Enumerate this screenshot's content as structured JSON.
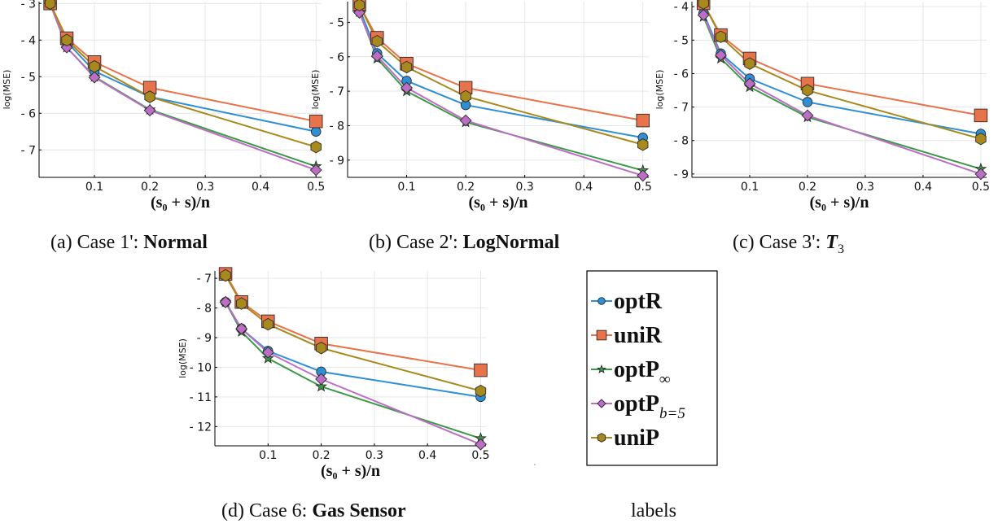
{
  "colors": {
    "optR": "#2e8fd4",
    "uniR": "#e8724a",
    "optP_inf": "#3d9a48",
    "optP_b5": "#bc6ec5",
    "uniP": "#a8891e"
  },
  "chart_data": [
    {
      "type": "line",
      "ylabel": "log(MSE)",
      "xlabel": "(s₀ + s)/n",
      "x": [
        0.02,
        0.05,
        0.1,
        0.2,
        0.5
      ],
      "xlim": [
        0.0,
        0.51
      ],
      "ylim": [
        -7.75,
        -2.95
      ],
      "xticks": [
        0.1,
        0.2,
        0.3,
        0.4,
        0.5
      ],
      "yticks": [
        -7,
        -6,
        -5,
        -4,
        -3
      ],
      "grid": true,
      "series": [
        {
          "name": "optR",
          "values": [
            -3.0,
            -4.05,
            -4.85,
            -5.55,
            -6.5
          ]
        },
        {
          "name": "uniR",
          "values": [
            -3.0,
            -3.95,
            -4.6,
            -5.3,
            -6.22
          ]
        },
        {
          "name": "optP∞",
          "values": [
            -3.0,
            -4.2,
            -5.0,
            -5.9,
            -7.45
          ]
        },
        {
          "name": "optPb=5",
          "values": [
            -3.0,
            -4.2,
            -5.02,
            -5.92,
            -7.55
          ]
        },
        {
          "name": "uniP",
          "values": [
            -3.0,
            -4.0,
            -4.72,
            -5.55,
            -6.92
          ]
        }
      ],
      "caption_prefix": "(a) Case 1':",
      "caption_bold": "Normal"
    },
    {
      "type": "line",
      "ylabel": "log(MSE)",
      "xlabel": "(s₀ + s)/n",
      "x": [
        0.02,
        0.05,
        0.1,
        0.2,
        0.5
      ],
      "xlim": [
        0.0,
        0.51
      ],
      "ylim": [
        -9.5,
        -4.4
      ],
      "xticks": [
        0.1,
        0.2,
        0.3,
        0.4,
        0.5
      ],
      "yticks": [
        -9,
        -8,
        -7,
        -6,
        -5
      ],
      "grid": true,
      "series": [
        {
          "name": "optR",
          "values": [
            -4.6,
            -5.9,
            -6.7,
            -7.4,
            -8.35
          ]
        },
        {
          "name": "uniR",
          "values": [
            -4.5,
            -5.45,
            -6.2,
            -6.9,
            -7.85
          ]
        },
        {
          "name": "optP∞",
          "values": [
            -4.7,
            -6.05,
            -7.0,
            -7.9,
            -9.3
          ]
        },
        {
          "name": "optPb=5",
          "values": [
            -4.72,
            -5.98,
            -6.9,
            -7.85,
            -9.45
          ]
        },
        {
          "name": "uniP",
          "values": [
            -4.5,
            -5.55,
            -6.3,
            -7.15,
            -8.55
          ]
        }
      ],
      "caption_prefix": "(b) Case 2':",
      "caption_bold": "LogNormal"
    },
    {
      "type": "line",
      "ylabel": "log(MSE)",
      "xlabel": "(s₀ + s)/n",
      "x": [
        0.02,
        0.05,
        0.1,
        0.2,
        0.5
      ],
      "xlim": [
        0.0,
        0.51
      ],
      "ylim": [
        -9.1,
        -3.85
      ],
      "xticks": [
        0.1,
        0.2,
        0.3,
        0.4,
        0.5
      ],
      "yticks": [
        -9,
        -8,
        -7,
        -6,
        -5,
        -4
      ],
      "grid": true,
      "series": [
        {
          "name": "optR",
          "values": [
            -4.2,
            -5.4,
            -6.15,
            -6.85,
            -7.8
          ]
        },
        {
          "name": "uniR",
          "values": [
            -3.9,
            -4.85,
            -5.55,
            -6.3,
            -7.25
          ]
        },
        {
          "name": "optP∞",
          "values": [
            -4.3,
            -5.55,
            -6.4,
            -7.3,
            -8.85
          ]
        },
        {
          "name": "optPb=5",
          "values": [
            -4.25,
            -5.45,
            -6.3,
            -7.25,
            -9.0
          ]
        },
        {
          "name": "uniP",
          "values": [
            -3.9,
            -4.9,
            -5.7,
            -6.5,
            -7.95
          ]
        }
      ],
      "caption_prefix": "(c) Case 3':",
      "caption_symbol": "T",
      "caption_sub": "3"
    },
    {
      "type": "line",
      "ylabel": "log(MSE)",
      "xlabel": "(s₀ + s)/n",
      "x": [
        0.02,
        0.05,
        0.1,
        0.2,
        0.5
      ],
      "xlim": [
        0.0,
        0.51
      ],
      "ylim": [
        -12.65,
        -6.75
      ],
      "xticks": [
        0.1,
        0.2,
        0.3,
        0.4,
        0.5
      ],
      "yticks": [
        -12,
        -11,
        -10,
        -9,
        -8,
        -7
      ],
      "grid": true,
      "series": [
        {
          "name": "optR",
          "values": [
            -7.8,
            -8.7,
            -9.45,
            -10.15,
            -11.0
          ]
        },
        {
          "name": "uniR",
          "values": [
            -6.85,
            -7.8,
            -8.45,
            -9.2,
            -10.1
          ]
        },
        {
          "name": "optP∞",
          "values": [
            -7.8,
            -8.8,
            -9.7,
            -10.65,
            -12.4
          ]
        },
        {
          "name": "optPb=5",
          "values": [
            -7.8,
            -8.7,
            -9.5,
            -10.4,
            -12.6
          ]
        },
        {
          "name": "uniP",
          "values": [
            -6.9,
            -7.85,
            -8.55,
            -9.35,
            -10.8
          ]
        }
      ],
      "caption_prefix": "(d) Case 6:",
      "caption_bold": "Gas Sensor"
    }
  ],
  "legend": {
    "items": [
      {
        "key": "optR",
        "label": "optR",
        "sub": "",
        "marker": "circle"
      },
      {
        "key": "uniR",
        "label": "uniR",
        "sub": "",
        "marker": "square"
      },
      {
        "key": "optP_inf",
        "label": "optP",
        "sub": "∞",
        "marker": "star"
      },
      {
        "key": "optP_b5",
        "label": "optP",
        "sub": "b=5",
        "marker": "diamond"
      },
      {
        "key": "uniP",
        "label": "uniP",
        "sub": "",
        "marker": "hexagon"
      }
    ],
    "caption": "labels"
  },
  "captions": {
    "a_prefix": "(a) Case 1':",
    "a_bold": "Normal",
    "b_prefix": "(b) Case 2':",
    "b_bold": "LogNormal",
    "c_prefix": "(c) Case 3':",
    "c_symbol": "T",
    "c_sub": "3",
    "d_prefix": "(d) Case 6:",
    "d_bold": "Gas Sensor",
    "legend": "labels"
  }
}
